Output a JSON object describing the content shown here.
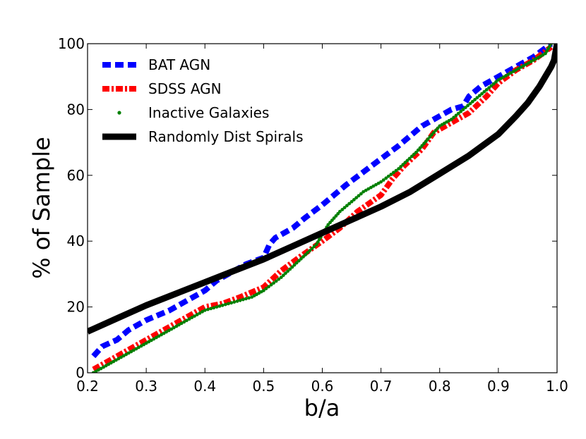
{
  "chart_data": {
    "type": "line",
    "title": "",
    "xlabel": "b/a",
    "ylabel": "% of Sample",
    "xlim": [
      0.2,
      1.0
    ],
    "ylim": [
      0,
      100
    ],
    "xticks": [
      0.2,
      0.3,
      0.4,
      0.5,
      0.6,
      0.7,
      0.8,
      0.9,
      1.0
    ],
    "xtick_labels": [
      "0.2",
      "0.3",
      "0.4",
      "0.5",
      "0.6",
      "0.7",
      "0.8",
      "0.9",
      "1.0"
    ],
    "yticks": [
      0,
      20,
      40,
      60,
      80,
      100
    ],
    "ytick_labels": [
      "0",
      "20",
      "40",
      "60",
      "80",
      "100"
    ],
    "grid": false,
    "legend_position": "top-left",
    "series": [
      {
        "name": "BAT AGN",
        "color": "#0000ff",
        "style": "dashed",
        "x": [
          0.21,
          0.225,
          0.25,
          0.27,
          0.3,
          0.34,
          0.37,
          0.4,
          0.42,
          0.45,
          0.47,
          0.5,
          0.51,
          0.52,
          0.55,
          0.57,
          0.6,
          0.62,
          0.64,
          0.67,
          0.7,
          0.73,
          0.75,
          0.77,
          0.8,
          0.82,
          0.84,
          0.85,
          0.87,
          0.9,
          0.93,
          0.96,
          0.99
        ],
        "y": [
          5,
          8,
          10,
          13,
          16,
          19,
          22,
          25,
          28,
          31,
          33,
          35,
          39,
          41,
          44,
          47,
          51,
          54,
          57,
          61,
          65,
          69,
          72,
          75,
          78,
          80,
          81,
          84,
          87,
          90,
          93,
          96,
          100
        ]
      },
      {
        "name": "SDSS AGN",
        "color": "#ff0000",
        "style": "dashdot",
        "x": [
          0.21,
          0.23,
          0.25,
          0.28,
          0.3,
          0.33,
          0.35,
          0.38,
          0.4,
          0.43,
          0.46,
          0.5,
          0.53,
          0.56,
          0.6,
          0.63,
          0.66,
          0.7,
          0.72,
          0.74,
          0.77,
          0.79,
          0.82,
          0.85,
          0.88,
          0.9,
          0.93,
          0.96,
          0.99
        ],
        "y": [
          1,
          3,
          5,
          8,
          10,
          13,
          15,
          18,
          20,
          21,
          23,
          26,
          31,
          35,
          40,
          44,
          49,
          54,
          59,
          63,
          68,
          73,
          76,
          79,
          84,
          88,
          92,
          95,
          99
        ]
      },
      {
        "name": "Inactive Galaxies",
        "color": "#008000",
        "style": "dotted",
        "x": [
          0.21,
          0.24,
          0.27,
          0.3,
          0.33,
          0.36,
          0.4,
          0.44,
          0.48,
          0.5,
          0.53,
          0.56,
          0.59,
          0.61,
          0.63,
          0.65,
          0.67,
          0.7,
          0.73,
          0.76,
          0.78,
          0.8,
          0.82,
          0.84,
          0.86,
          0.88,
          0.9,
          0.93,
          0.96,
          0.98,
          0.99
        ],
        "y": [
          0,
          3,
          6,
          9,
          12,
          15,
          19,
          21,
          23,
          25,
          29,
          34,
          39,
          45,
          49,
          52,
          55,
          58,
          62,
          67,
          71,
          75,
          77,
          80,
          83,
          86,
          89,
          92,
          95,
          97,
          100
        ]
      },
      {
        "name": "Randomly Dist Spirals",
        "color": "#000000",
        "style": "solid",
        "x": [
          0.2,
          0.25,
          0.3,
          0.35,
          0.4,
          0.45,
          0.5,
          0.55,
          0.6,
          0.65,
          0.7,
          0.75,
          0.8,
          0.85,
          0.9,
          0.93,
          0.95,
          0.97,
          0.98,
          0.99,
          0.995,
          1.0
        ],
        "y": [
          12.5,
          16.5,
          20.5,
          24,
          27.5,
          31,
          34.5,
          38.5,
          42.5,
          46.5,
          50.5,
          55,
          60.5,
          66,
          72.5,
          78,
          82,
          87,
          90,
          93,
          95,
          100
        ]
      }
    ]
  }
}
